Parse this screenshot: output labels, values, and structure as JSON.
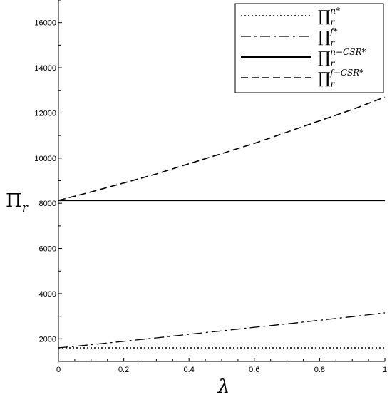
{
  "chart_data": {
    "type": "line",
    "title": "",
    "xlabel": "λ",
    "ylabel": {
      "base": "Π",
      "sub": "r"
    },
    "xlim": [
      0,
      1
    ],
    "ylim": [
      1000,
      17000
    ],
    "x_ticks": [
      0,
      0.2,
      0.4,
      0.6,
      0.8,
      1
    ],
    "x_tick_labels": [
      "0",
      "0.2",
      "0.4",
      "0.6",
      "0.8",
      "1"
    ],
    "y_ticks": [
      2000,
      4000,
      6000,
      8000,
      10000,
      12000,
      14000,
      16000
    ],
    "y_tick_labels": [
      "2000",
      "4000",
      "6000",
      "8000",
      "10000",
      "12000",
      "14000",
      "16000"
    ],
    "grid": false,
    "legend_position": "top-right",
    "x": [
      0,
      0.1,
      0.2,
      0.3,
      0.4,
      0.5,
      0.6,
      0.7,
      0.8,
      0.9,
      1
    ],
    "series": [
      {
        "name": {
          "base": "∏",
          "sub": "r",
          "sup": "n*"
        },
        "style": "dotted",
        "values": [
          1600,
          1600,
          1600,
          1600,
          1600,
          1600,
          1600,
          1600,
          1600,
          1600,
          1600
        ]
      },
      {
        "name": {
          "base": "∏",
          "sub": "r",
          "sup": "f*"
        },
        "style": "dashdot",
        "values": [
          1600,
          1740,
          1890,
          2040,
          2200,
          2350,
          2510,
          2660,
          2820,
          2980,
          3150
        ]
      },
      {
        "name": {
          "base": "∏",
          "sub": "r",
          "sup": "n−CSR*"
        },
        "style": "solid",
        "values": [
          8130,
          8130,
          8130,
          8130,
          8130,
          8130,
          8130,
          8130,
          8130,
          8130,
          8130
        ]
      },
      {
        "name": {
          "base": "∏",
          "sub": "r",
          "sup": "f−CSR*"
        },
        "style": "dashed",
        "values": [
          8130,
          8500,
          8900,
          9300,
          9750,
          10200,
          10650,
          11150,
          11650,
          12150,
          12700
        ]
      }
    ]
  }
}
